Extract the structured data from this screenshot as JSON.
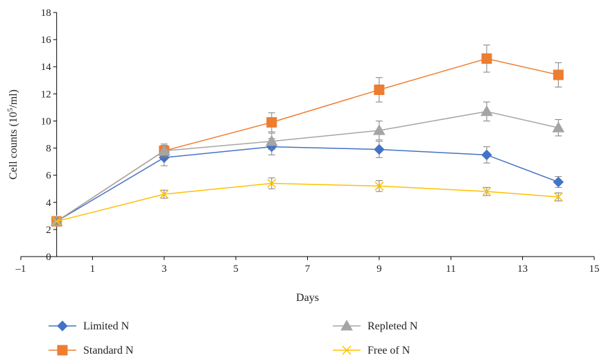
{
  "chart_data": {
    "type": "line",
    "xlabel": "Days",
    "ylabel": "Cell counts (10",
    "ylabel_sup": "5",
    "ylabel_tail": "/ml)",
    "xlim": [
      -1,
      15
    ],
    "ylim": [
      0,
      18
    ],
    "xticks": [
      -1,
      1,
      3,
      5,
      7,
      9,
      11,
      13,
      15
    ],
    "yticks": [
      0,
      2,
      4,
      6,
      8,
      10,
      12,
      14,
      16,
      18
    ],
    "grid": false,
    "legend_position": "bottom",
    "series": [
      {
        "name": "Limited N",
        "color": "#4472C4",
        "marker": "diamond",
        "x": [
          0,
          3,
          6,
          9,
          12,
          14
        ],
        "y": [
          2.6,
          7.3,
          8.1,
          7.9,
          7.5,
          5.5
        ],
        "err": [
          0.2,
          0.6,
          0.6,
          0.6,
          0.6,
          0.4
        ]
      },
      {
        "name": "Standard N",
        "color": "#ED7D31",
        "marker": "square",
        "x": [
          0,
          3,
          6,
          9,
          12,
          14
        ],
        "y": [
          2.6,
          7.8,
          9.9,
          12.3,
          14.6,
          13.4
        ],
        "err": [
          0.2,
          0.5,
          0.7,
          0.9,
          1.0,
          0.9
        ]
      },
      {
        "name": "Repleted N",
        "color": "#A5A5A5",
        "marker": "triangle",
        "x": [
          0,
          3,
          6,
          9,
          12,
          14
        ],
        "y": [
          2.6,
          7.8,
          8.5,
          9.3,
          10.7,
          9.5
        ],
        "err": [
          0.2,
          0.4,
          0.6,
          0.7,
          0.7,
          0.6
        ]
      },
      {
        "name": "Free of N",
        "color": "#FFC000",
        "marker": "x",
        "x": [
          0,
          3,
          6,
          9,
          12,
          14
        ],
        "y": [
          2.6,
          4.6,
          5.4,
          5.2,
          4.8,
          4.4
        ],
        "err": [
          0.2,
          0.3,
          0.4,
          0.4,
          0.3,
          0.3
        ]
      }
    ]
  }
}
